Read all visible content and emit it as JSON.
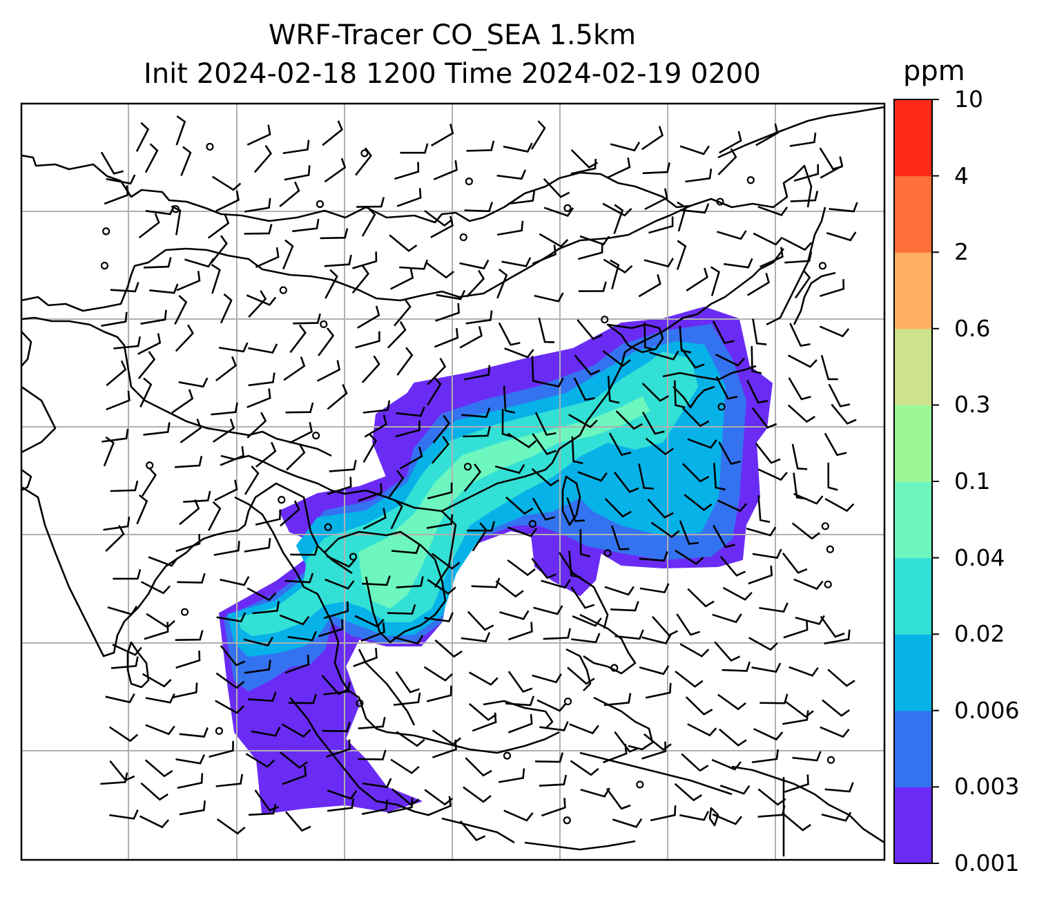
{
  "title": {
    "line1": "WRF-Tracer CO_SEA 1.5km",
    "line2": "Init 2024-02-18 1200 Time 2024-02-19 0200"
  },
  "colorbar": {
    "unit": "ppm",
    "ticks": [
      "0.001",
      "0.003",
      "0.006",
      "0.02",
      "0.04",
      "0.1",
      "0.3",
      "0.6",
      "2",
      "4",
      "10"
    ],
    "colors": [
      "#6a2cf5",
      "#3473f0",
      "#06b2e8",
      "#33e0d5",
      "#6df7bf",
      "#9cf796",
      "#cde28a",
      "#feaf60",
      "#fe7039",
      "#ff2b18"
    ]
  },
  "map": {
    "variable": "CO tracer concentration",
    "overlay": "wind barbs",
    "gridlines": true
  }
}
